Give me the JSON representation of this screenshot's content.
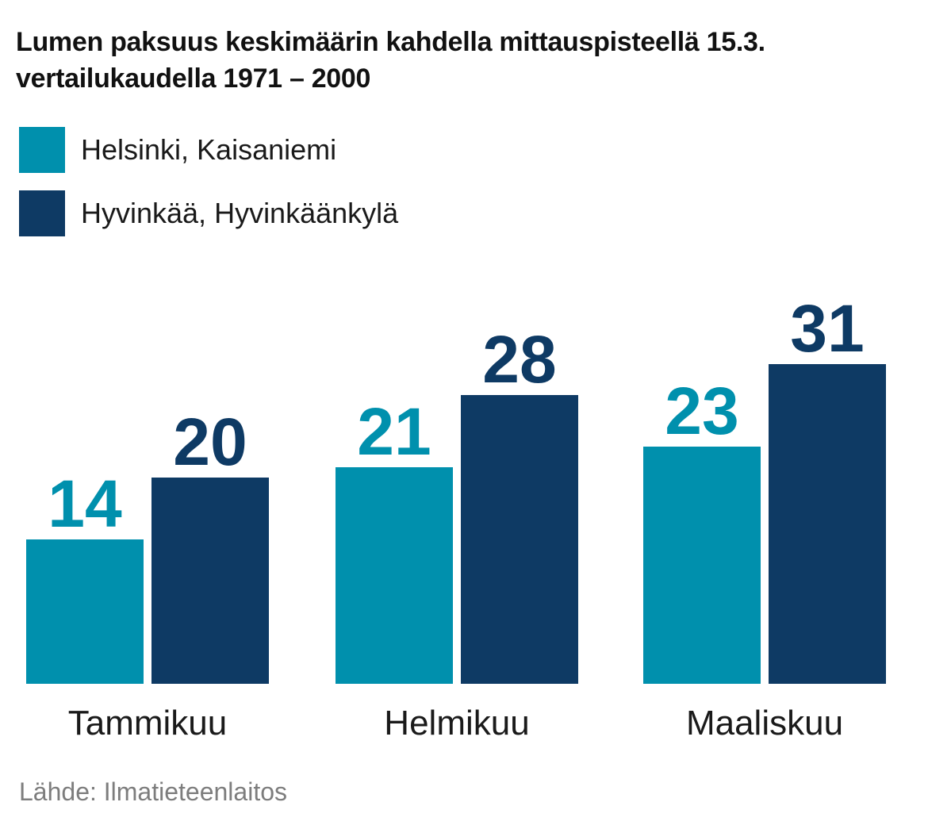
{
  "title_line1": "Lumen paksuus keskimäärin kahdella mittauspisteellä 15.3.",
  "title_line2": "vertailukaudella 1971 – 2000",
  "legend": [
    {
      "label": "Helsinki, Kaisaniemi",
      "color": "#0090ad"
    },
    {
      "label": "Hyvinkää, Hyvinkäänkylä",
      "color": "#0e3a64"
    }
  ],
  "source": "Lähde: Ilmatieteenlaitos",
  "chart_data": {
    "type": "bar",
    "categories": [
      "Tammikuu",
      "Helmikuu",
      "Maaliskuu"
    ],
    "series": [
      {
        "name": "Helsinki, Kaisaniemi",
        "values": [
          14,
          21,
          23
        ],
        "color": "#0090ad"
      },
      {
        "name": "Hyvinkää, Hyvinkäänkylä",
        "values": [
          20,
          28,
          31
        ],
        "color": "#0e3a64"
      }
    ],
    "title": "Lumen paksuus keskimäärin kahdella mittauspisteellä 15.3. vertailukaudella 1971 – 2000",
    "xlabel": "",
    "ylabel": "",
    "ylim": [
      0,
      31
    ],
    "grid": false,
    "data_labels": true,
    "legend_position": "top-left"
  }
}
